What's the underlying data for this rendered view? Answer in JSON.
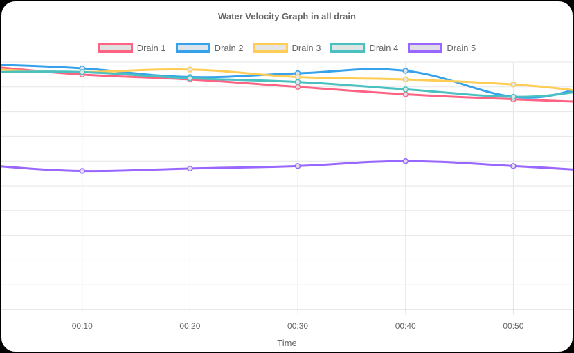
{
  "chart_data": {
    "type": "line",
    "title": "Water Velocity Graph in all drain",
    "xlabel": "Time",
    "ylabel": "",
    "x": [
      "00:10",
      "00:20",
      "00:30",
      "00:40",
      "00:50"
    ],
    "xlim": [
      "00:02.5",
      "00:55.5"
    ],
    "ylim": [
      0,
      100
    ],
    "grid": true,
    "legend_position": "top",
    "series": [
      {
        "name": "Drain 1",
        "color": "#ff6384",
        "fill": "#e0e0e0",
        "x": [
          "00:02",
          "00:10",
          "00:20",
          "00:30",
          "00:40",
          "00:50",
          "00:56"
        ],
        "values": [
          98,
          95,
          93,
          90,
          87,
          85,
          84
        ]
      },
      {
        "name": "Drain 2",
        "color": "#36a2eb",
        "fill": "#dde3ea",
        "x": [
          "00:02",
          "00:10",
          "00:20",
          "00:30",
          "00:40",
          "00:50",
          "00:56"
        ],
        "values": [
          99,
          97.5,
          94,
          95.5,
          96.5,
          86,
          89
        ]
      },
      {
        "name": "Drain 3",
        "color": "#ffcd56",
        "fill": "#e5e5e5",
        "x": [
          "00:02",
          "00:10",
          "00:20",
          "00:30",
          "00:40",
          "00:50",
          "00:56"
        ],
        "values": [
          97,
          96,
          97,
          94,
          93,
          91,
          88.5
        ]
      },
      {
        "name": "Drain 4",
        "color": "#4bc0c0",
        "fill": "#dde6e5",
        "x": [
          "00:02",
          "00:10",
          "00:20",
          "00:30",
          "00:40",
          "00:50",
          "00:56"
        ],
        "values": [
          96,
          96,
          93.5,
          92,
          89,
          86,
          88
        ]
      },
      {
        "name": "Drain 5",
        "color": "#9966ff",
        "fill": "#e0dde8",
        "x": [
          "00:02",
          "00:10",
          "00:20",
          "00:30",
          "00:40",
          "00:50",
          "00:56"
        ],
        "values": [
          58,
          56,
          57,
          58,
          60,
          58,
          56.5
        ]
      }
    ]
  }
}
